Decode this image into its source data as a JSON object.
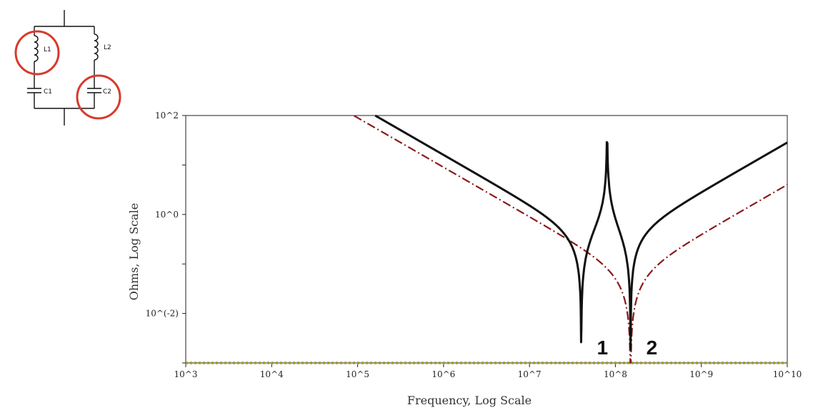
{
  "circuit": {
    "components": [
      {
        "id": "L1",
        "label": "L1",
        "type": "inductor",
        "highlighted": true
      },
      {
        "id": "L2",
        "label": "L2",
        "type": "inductor",
        "highlighted": false
      },
      {
        "id": "C1",
        "label": "C1",
        "type": "capacitor",
        "highlighted": false
      },
      {
        "id": "C2",
        "label": "C2",
        "type": "capacitor",
        "highlighted": true
      }
    ],
    "highlight_color": "#d8392b"
  },
  "chart_data": {
    "type": "line",
    "title": "",
    "xlabel": "Frequency, Log Scale",
    "ylabel": "Ohms, Log Scale",
    "x_scale": "log",
    "y_scale": "log",
    "xlim": [
      1000,
      10000000000
    ],
    "ylim": [
      0.001,
      100
    ],
    "x_ticks": [
      {
        "value": 1000,
        "label": "10^3"
      },
      {
        "value": 10000,
        "label": "10^4"
      },
      {
        "value": 100000,
        "label": "10^5"
      },
      {
        "value": 1000000,
        "label": "10^6"
      },
      {
        "value": 10000000,
        "label": "10^7"
      },
      {
        "value": 100000000,
        "label": "10^8"
      },
      {
        "value": 1000000000,
        "label": "10^9"
      },
      {
        "value": 10000000000,
        "label": "10^10"
      }
    ],
    "y_ticks": [
      {
        "value": 100,
        "label": "10^2"
      },
      {
        "value": 1,
        "label": "10^0"
      },
      {
        "value": 0.01,
        "label": "10^(-2)"
      }
    ],
    "grid": false,
    "legend": "none",
    "series": [
      {
        "color": "#a09a2a",
        "style": "dotted",
        "f0": 40000000,
        "c": 1e-09
      },
      {
        "color": "#8b1a1a",
        "style": "dashdot",
        "f0": 150000000,
        "c": 1e-10
      },
      {
        "color": "#111111",
        "style": "solid",
        "f1": 40000000,
        "f2": 150000000,
        "fp": 80000000,
        "c": 1e-09
      }
    ],
    "annotations": [
      {
        "label": "1",
        "x": 40000000
      },
      {
        "label": "2",
        "x": 150000000
      }
    ]
  }
}
